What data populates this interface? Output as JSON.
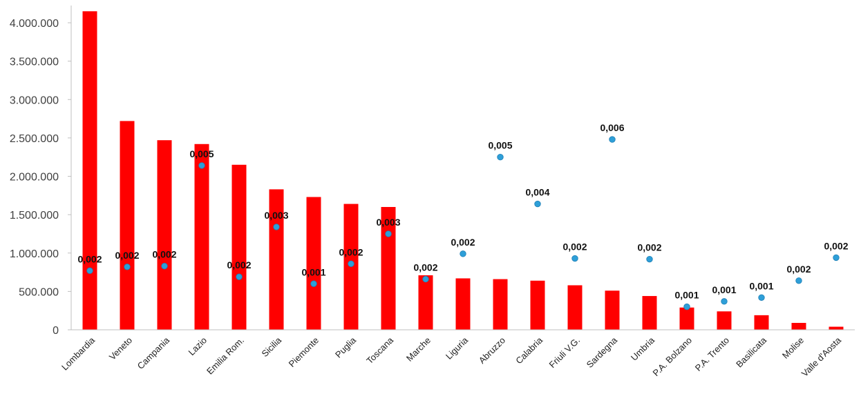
{
  "chart_data": {
    "type": "bar",
    "title": "",
    "xlabel": "",
    "ylabel": "",
    "ylim": [
      0,
      4000000
    ],
    "y_ticks": [
      0,
      500000,
      1000000,
      1500000,
      2000000,
      2500000,
      3000000,
      3500000,
      4000000
    ],
    "y_tick_labels": [
      "0",
      "500.000",
      "1.000.000",
      "1.500.000",
      "2.000.000",
      "2.500.000",
      "3.000.000",
      "3.500.000",
      "4.000.000"
    ],
    "grid": false,
    "legend": "none",
    "categories": [
      "Lombardia",
      "Veneto",
      "Campania",
      "Lazio",
      "Emilia Rom.",
      "Sicilia",
      "Piemonte",
      "Puglia",
      "Toscana",
      "Marche",
      "Liguria",
      "Abruzzo",
      "Calabria",
      "Friuli V.G.",
      "Sardegna",
      "Umbria",
      "P.A. Bolzano",
      "P.A. Trento",
      "Basilicata",
      "Molise",
      "Valle d'Aosta"
    ],
    "series": [
      {
        "type": "bar",
        "color": "#ff0000",
        "values": [
          4150000,
          2720000,
          2470000,
          2420000,
          2150000,
          1830000,
          1730000,
          1640000,
          1600000,
          710000,
          670000,
          660000,
          640000,
          580000,
          510000,
          440000,
          290000,
          240000,
          190000,
          90000,
          40000
        ]
      },
      {
        "type": "scatter",
        "color": "#2e9fd8",
        "values": [
          0.002,
          0.002,
          0.002,
          0.005,
          0.002,
          0.003,
          0.001,
          0.002,
          0.003,
          0.002,
          0.002,
          0.005,
          0.004,
          0.002,
          0.006,
          0.002,
          0.001,
          0.001,
          0.001,
          0.002,
          0.002
        ],
        "labels": [
          "0,002",
          "0,002",
          "0,002",
          "0,005",
          "0,002",
          "0,003",
          "0,001",
          "0,002",
          "0,003",
          "0,002",
          "0,002",
          "0,005",
          "0,004",
          "0,002",
          "0,006",
          "0,002",
          "0,001",
          "0,001",
          "0,001",
          "0,002",
          "0,002"
        ],
        "plotted_on_y_scale": [
          770000,
          820000,
          830000,
          2140000,
          690000,
          1340000,
          600000,
          860000,
          1250000,
          660000,
          990000,
          2250000,
          1640000,
          930000,
          2480000,
          920000,
          300000,
          370000,
          420000,
          640000,
          940000
        ]
      }
    ]
  }
}
